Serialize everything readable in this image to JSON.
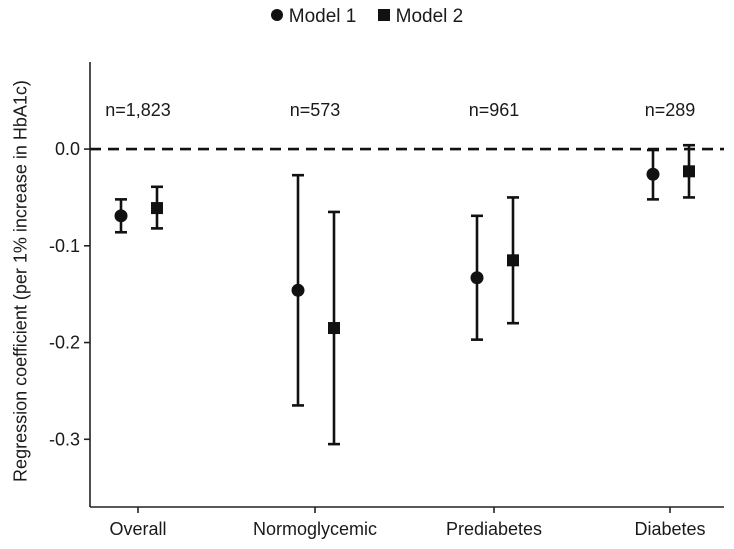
{
  "chart_data": {
    "type": "scatter",
    "title": "",
    "ylabel": "Regression coefficient (per 1% increase in HbA1c)",
    "xlabel": "",
    "categories": [
      "Overall",
      "Normoglycemic",
      "Prediabetes",
      "Diabetes"
    ],
    "annotations": [
      "n=1,823",
      "n=573",
      "n=961",
      "n=289"
    ],
    "ylim": [
      -0.37,
      0.09
    ],
    "yticks": [
      0.0,
      -0.1,
      -0.2,
      -0.3
    ],
    "ytick_labels": [
      "0.0",
      "-0.1",
      "-0.2",
      "-0.3"
    ],
    "reference_line": 0.0,
    "legend_position": "top-center",
    "grid": false,
    "series": [
      {
        "name": "Model 1",
        "marker": "circle",
        "values": [
          -0.069,
          -0.146,
          -0.133,
          -0.026
        ],
        "lower": [
          -0.086,
          -0.265,
          -0.197,
          -0.052
        ],
        "upper": [
          -0.052,
          -0.027,
          -0.069,
          -0.001
        ]
      },
      {
        "name": "Model 2",
        "marker": "square",
        "values": [
          -0.061,
          -0.185,
          -0.115,
          -0.023
        ],
        "lower": [
          -0.082,
          -0.305,
          -0.18,
          -0.05
        ],
        "upper": [
          -0.039,
          -0.065,
          -0.05,
          0.004
        ]
      }
    ]
  }
}
